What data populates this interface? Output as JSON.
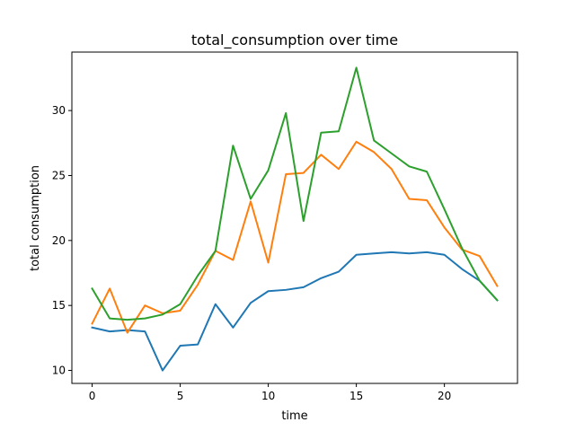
{
  "chart_data": {
    "type": "line",
    "title": "total_consumption over time",
    "xlabel": "time",
    "ylabel": "total consumption",
    "xlim": [
      -1.15,
      24.15
    ],
    "ylim": [
      9.0,
      34.5
    ],
    "xticks": [
      0,
      5,
      10,
      15,
      20
    ],
    "yticks": [
      10,
      15,
      20,
      25,
      30
    ],
    "grid": false,
    "x": [
      0,
      1,
      2,
      3,
      4,
      5,
      6,
      7,
      8,
      9,
      10,
      11,
      12,
      13,
      14,
      15,
      16,
      17,
      18,
      19,
      20,
      21,
      22,
      23
    ],
    "series": [
      {
        "color": "#1f77b4",
        "values": [
          13.3,
          13.0,
          13.1,
          13.0,
          10.0,
          11.9,
          12.0,
          15.1,
          13.3,
          15.2,
          16.1,
          16.2,
          16.4,
          17.1,
          17.6,
          18.9,
          19.0,
          19.1,
          19.0,
          19.1,
          18.9,
          17.8,
          16.9,
          15.4
        ]
      },
      {
        "color": "#ff7f0e",
        "values": [
          13.6,
          16.3,
          12.9,
          15.0,
          14.4,
          14.6,
          16.6,
          19.2,
          18.5,
          23.0,
          18.3,
          25.1,
          25.2,
          26.6,
          25.5,
          27.6,
          26.8,
          25.5,
          23.2,
          23.1,
          21.0,
          19.3,
          18.8,
          16.5
        ]
      },
      {
        "color": "#2ca02c",
        "values": [
          16.3,
          14.0,
          13.9,
          14.0,
          14.3,
          15.1,
          17.3,
          19.2,
          27.3,
          23.2,
          25.4,
          29.8,
          21.5,
          28.3,
          28.4,
          33.3,
          27.7,
          26.7,
          25.7,
          25.3,
          22.4,
          19.4,
          16.9,
          15.4
        ]
      }
    ]
  }
}
